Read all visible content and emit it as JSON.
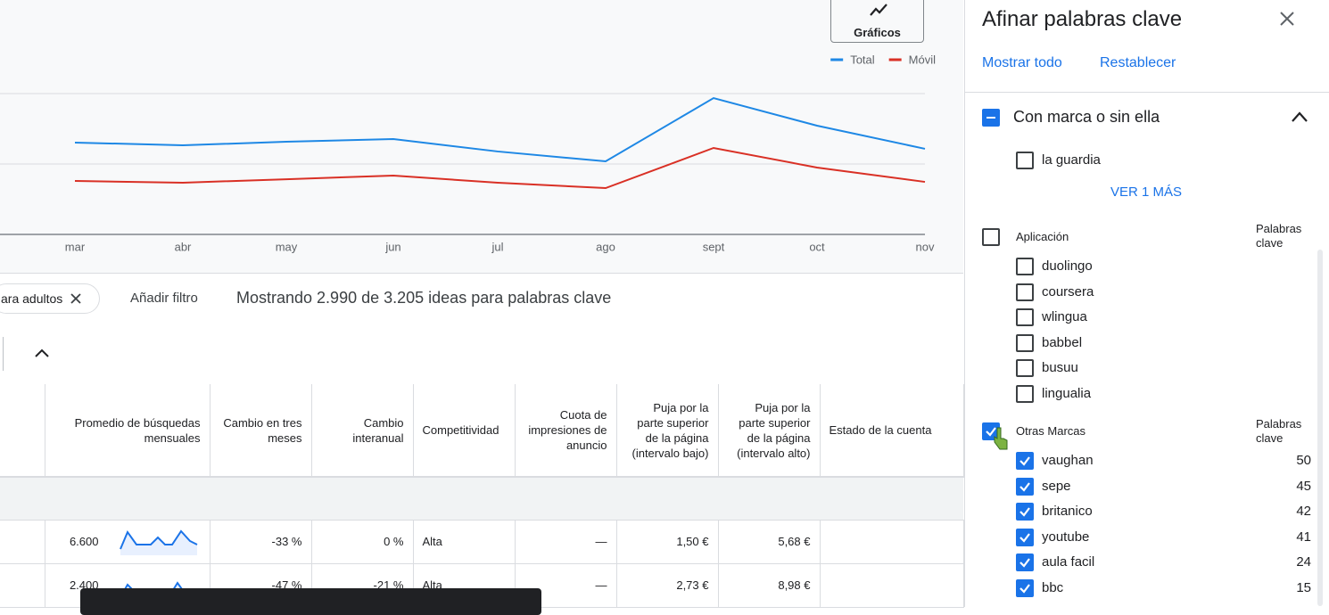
{
  "chart_button": "Gráficos",
  "chart_data": {
    "type": "line",
    "categories": [
      "mar",
      "abr",
      "may",
      "jun",
      "jul",
      "ago",
      "sept",
      "oct",
      "nov"
    ],
    "series": [
      {
        "name": "Total",
        "color": "#1e88e5",
        "values": [
          65.2,
          63.3,
          65.8,
          67.7,
          58.9,
          51.9,
          96.8,
          77.2,
          60.8
        ]
      },
      {
        "name": "Móvil",
        "color": "#d93025",
        "values": [
          38.0,
          36.7,
          39.2,
          41.8,
          36.7,
          32.9,
          61.4,
          47.5,
          37.3
        ]
      }
    ],
    "ylim": [
      0,
      100
    ],
    "legend": "top-right"
  },
  "filter_bar": {
    "chip": "ara adultos",
    "add_filter": "Añadir filtro",
    "summary": "Mostrando 2.990 de 3.205 ideas para palabras clave"
  },
  "table": {
    "headers": [
      "Promedio de búsquedas mensuales",
      "Cambio en tres meses",
      "Cambio interanual",
      "Competitividad",
      "Cuota de impresiones de anuncio",
      "Puja por la parte superior de la página (intervalo bajo)",
      "Puja por la parte superior de la página (intervalo alto)",
      "Estado de la cuenta"
    ],
    "rows": [
      [
        "6.600",
        "-33 %",
        "0 %",
        "Alta",
        "—",
        "1,50 €",
        "5,68 €"
      ],
      [
        "2.400",
        "-47 %",
        "-21 %",
        "Alta",
        "—",
        "2,73 €",
        "8,98 €"
      ]
    ]
  },
  "panel": {
    "title": "Afinar palabras clave",
    "show_all": "Mostrar todo",
    "reset": "Restablecer",
    "brand": {
      "title": "Con marca o sin ella",
      "items": [
        "la guardia"
      ],
      "more": "VER 1 MÁS"
    },
    "app": {
      "title": "Aplicación",
      "count_header": "Palabras clave",
      "items": [
        "duolingo",
        "coursera",
        "wlingua",
        "babbel",
        "busuu",
        "lingualia"
      ]
    },
    "other": {
      "title": "Otras Marcas",
      "count_header": "Palabras clave",
      "items": [
        {
          "label": "vaughan",
          "count": 50
        },
        {
          "label": "sepe",
          "count": 45
        },
        {
          "label": "britanico",
          "count": 42
        },
        {
          "label": "youtube",
          "count": 41
        },
        {
          "label": "aula facil",
          "count": 24
        },
        {
          "label": "bbc",
          "count": 15
        }
      ]
    }
  }
}
